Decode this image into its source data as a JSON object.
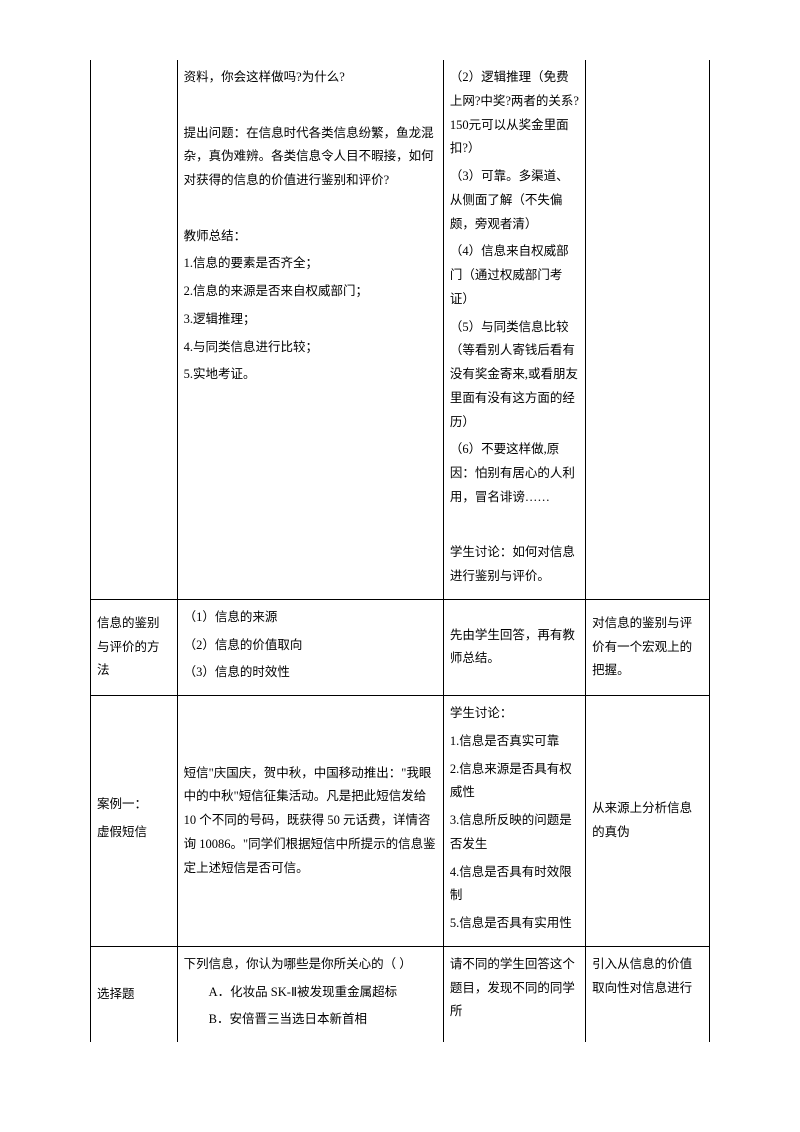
{
  "row1": {
    "c1": "",
    "c2": {
      "p1": "资料，你会这样做吗?为什么?",
      "p2": "提出问题：在信息时代各类信息纷繁，鱼龙混杂，真伪难辨。各类信息令人目不暇接，如何对获得的信息的价值进行鉴别和评价?",
      "p3": "教师总结：",
      "l1": "1.信息的要素是否齐全；",
      "l2": "2.信息的来源是否来自权威部门；",
      "l3": "3.逻辑推理；",
      "l4": "4.与同类信息进行比较；",
      "l5": "5.实地考证。"
    },
    "c3": {
      "i2": "（2）逻辑推理（免费上网?中奖?两者的关系?150元可以从奖金里面扣?）",
      "i3": "（3）可靠。多渠道、从侧面了解（不失偏颇，旁观者清）",
      "i4": "（4）信息来自权威部门（通过权威部门考证）",
      "i5": "（5）与同类信息比较（等看别人寄钱后看有没有奖金寄来,或看朋友里面有没有这方面的经历）",
      "i6": "（6）不要这样做,原因：怕别有居心的人利用，冒名诽谤……",
      "p7": "学生讨论：如何对信息进行鉴别与评价。"
    },
    "c4": ""
  },
  "row2": {
    "c1": "信息的鉴别与评价的方法",
    "c2": {
      "l1": "（1）信息的来源",
      "l2": "（2）信息的价值取向",
      "l3": "（3）信息的时效性"
    },
    "c3": "先由学生回答，再有教师总结。",
    "c4": "对信息的鉴别与评价有一个宏观上的把握。"
  },
  "row3": {
    "c1a": "案例一：",
    "c1b": "虚假短信",
    "c2": "短信\"庆国庆，贺中秋，中国移动推出：\"我眼中的中秋\"短信征集活动。凡是把此短信发给 10 个不同的号码，既获得 50 元话费，详情咨询 10086。\"同学们根据短信中所提示的信息鉴定上述短信是否可信。",
    "c3": {
      "t": "学生讨论：",
      "l1": "1.信息是否真实可靠",
      "l2": "2.信息来源是否具有权威性",
      "l3": "3.信息所反映的问题是否发生",
      "l4": "4.信息是否具有时效限制",
      "l5": "5.信息是否具有实用性"
    },
    "c4": "从来源上分析信息的真伪"
  },
  "row4": {
    "c1": "选择题",
    "c2": {
      "q": "下列信息，你认为哪些是你所关心的（   ）",
      "a": "A．化妆品 SK-Ⅱ被发现重金属超标",
      "b": "B．安倍晋三当选日本新首相"
    },
    "c3": "请不同的学生回答这个题目，发现不同的同学所",
    "c4": "引入从信息的价值取向性对信息进行"
  }
}
